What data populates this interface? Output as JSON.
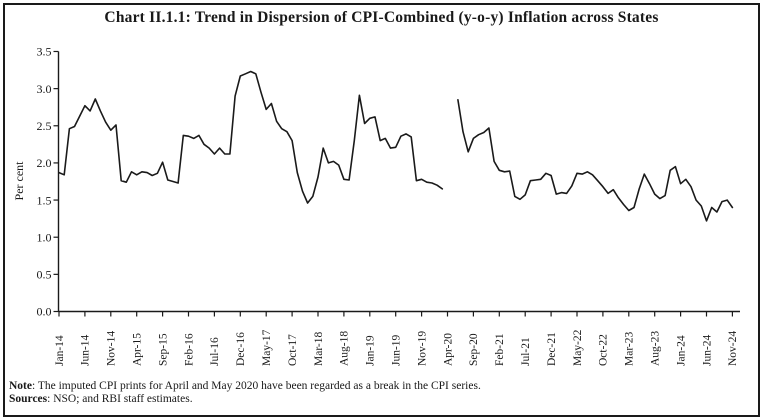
{
  "title": "Chart II.1.1: Trend in Dispersion of CPI-Combined (y-o-y) Inflation across States",
  "footer": {
    "note_label": "Note",
    "note_text": ": The imputed CPI prints for April and May 2020 have been regarded as a break in the CPI series.",
    "sources_label": "Sources",
    "sources_text": ": NSO; and RBI staff estimates."
  },
  "chart_data": {
    "type": "line",
    "title": "Chart II.1.1: Trend in Dispersion of CPI-Combined (y-o-y) Inflation across States",
    "ylabel": "Per cent",
    "ylim": [
      0.0,
      3.5
    ],
    "y_tick_labels": [
      "0.0",
      "0.5",
      "1.0",
      "1.5",
      "2.0",
      "2.5",
      "3.0",
      "3.5"
    ],
    "x_tick_labels": [
      "Jan-14",
      "Jun-14",
      "Nov-14",
      "Apr-15",
      "Sep-15",
      "Feb-16",
      "Jul-16",
      "Dec-16",
      "May-17",
      "Oct-17",
      "Mar-18",
      "Aug-18",
      "Jan-19",
      "Jun-19",
      "Nov-19",
      "Apr-20",
      "Sep-20",
      "Feb-21",
      "Jul-21",
      "Dec-21",
      "May-22",
      "Oct-22",
      "Mar-23",
      "Aug-23",
      "Jan-24",
      "Jun-24",
      "Nov-24"
    ],
    "x_tick_every_months": 5,
    "period": {
      "start": "Jan-14",
      "end": "Nov-24"
    },
    "break_months": [
      "Apr-20",
      "May-20"
    ],
    "line_color": "#1a1a1a",
    "grid": false,
    "legend": "none",
    "values": [
      1.87,
      1.84,
      2.46,
      2.49,
      2.63,
      2.77,
      2.7,
      2.86,
      2.7,
      2.55,
      2.44,
      2.51,
      1.76,
      1.74,
      1.88,
      1.84,
      1.88,
      1.87,
      1.83,
      1.86,
      2.01,
      1.77,
      1.75,
      1.73,
      2.37,
      2.36,
      2.33,
      2.37,
      2.25,
      2.2,
      2.12,
      2.2,
      2.12,
      2.12,
      2.9,
      3.17,
      3.2,
      3.23,
      3.2,
      2.95,
      2.72,
      2.8,
      2.56,
      2.46,
      2.42,
      2.3,
      1.87,
      1.62,
      1.46,
      1.55,
      1.81,
      2.2,
      2.0,
      2.02,
      1.97,
      1.78,
      1.77,
      2.3,
      2.91,
      2.53,
      2.6,
      2.62,
      2.3,
      2.33,
      2.2,
      2.21,
      2.36,
      2.39,
      2.35,
      1.76,
      1.78,
      1.74,
      1.73,
      1.7,
      1.65,
      null,
      null,
      2.85,
      2.42,
      2.15,
      2.33,
      2.38,
      2.41,
      2.47,
      2.02,
      1.9,
      1.88,
      1.89,
      1.55,
      1.51,
      1.57,
      1.76,
      1.77,
      1.78,
      1.86,
      1.83,
      1.58,
      1.6,
      1.59,
      1.69,
      1.86,
      1.85,
      1.88,
      1.84,
      1.76,
      1.68,
      1.59,
      1.64,
      1.53,
      1.44,
      1.36,
      1.4,
      1.65,
      1.85,
      1.72,
      1.58,
      1.52,
      1.56,
      1.9,
      1.95,
      1.72,
      1.78,
      1.68,
      1.5,
      1.42,
      1.22,
      1.4,
      1.34,
      1.48,
      1.5,
      1.4
    ]
  }
}
